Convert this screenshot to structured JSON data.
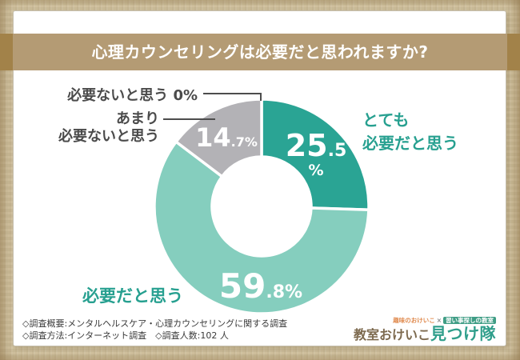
{
  "page": {
    "title": "心理カウンセリングは必要だと思われますか?"
  },
  "chart_data": {
    "type": "pie",
    "donut": true,
    "title": "心理カウンセリングは必要だと思われますか?",
    "categories": [
      "とても必要だと思う",
      "必要だと思う",
      "あまり必要ないと思う",
      "必要ないと思う"
    ],
    "values": [
      25.5,
      59.8,
      14.7,
      0
    ],
    "unit": "%",
    "colors": [
      "#2aa494",
      "#85cebe",
      "#b3b2b6",
      "#b3b2b6"
    ],
    "start_angle_deg": 0,
    "direction": "clockwise",
    "inner_radius_ratio": 0.46,
    "legend_position": "callouts",
    "value_labels": [
      {
        "int": "25",
        "frac": ".5",
        "pct": "%"
      },
      {
        "int": "59",
        "frac": ".8%",
        "pct": ""
      },
      {
        "int": "14",
        "frac": ".7%",
        "pct": ""
      }
    ]
  },
  "labels": {
    "very": {
      "line1": "とても",
      "line2": "必要だと思う"
    },
    "need": {
      "text": "必要だと思う"
    },
    "rarely": {
      "line1": "あまり",
      "line2": "必要ないと思う"
    },
    "none": {
      "text": "必要ないと思う 0%"
    }
  },
  "footer": {
    "line1": "◇調査概要:メンタルヘルスケア・心理カウンセリングに関する調査",
    "line2": "◇調査方法:インターネット調査　◇調査人数:102 人"
  },
  "logo": {
    "tagline_left": "趣味のおけいこ",
    "tagline_x": "×",
    "tagline_badge": "習い事探しの教室",
    "main_left": "教室おけいこ",
    "main_right": "見つけ隊"
  },
  "theme": {
    "banner_color": "#b49b74",
    "banner_cap_color": "#a28249",
    "paper_color": "#d5c6a3",
    "accent_teal": "#27a090",
    "label_gray": "#4b4b4b"
  }
}
